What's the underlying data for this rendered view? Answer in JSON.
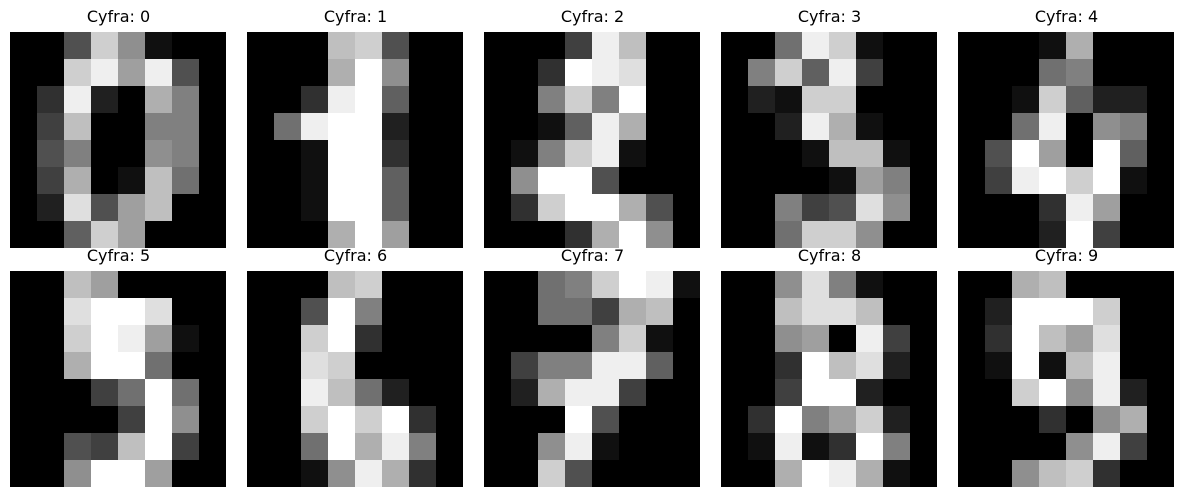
{
  "chart_data": {
    "type": "heatmap",
    "colormap": "gray",
    "value_range": [
      0,
      16
    ],
    "panels": [
      {
        "title": "Cyfra: 0",
        "pixels": [
          [
            0,
            0,
            5,
            13,
            9,
            1,
            0,
            0
          ],
          [
            0,
            0,
            13,
            15,
            10,
            15,
            5,
            0
          ],
          [
            0,
            3,
            15,
            2,
            0,
            11,
            8,
            0
          ],
          [
            0,
            4,
            12,
            0,
            0,
            8,
            8,
            0
          ],
          [
            0,
            5,
            8,
            0,
            0,
            9,
            8,
            0
          ],
          [
            0,
            4,
            11,
            0,
            1,
            12,
            7,
            0
          ],
          [
            0,
            2,
            14,
            5,
            10,
            12,
            0,
            0
          ],
          [
            0,
            0,
            6,
            13,
            10,
            0,
            0,
            0
          ]
        ]
      },
      {
        "title": "Cyfra: 1",
        "pixels": [
          [
            0,
            0,
            0,
            12,
            13,
            5,
            0,
            0
          ],
          [
            0,
            0,
            0,
            11,
            16,
            9,
            0,
            0
          ],
          [
            0,
            0,
            3,
            15,
            16,
            6,
            0,
            0
          ],
          [
            0,
            7,
            15,
            16,
            16,
            2,
            0,
            0
          ],
          [
            0,
            0,
            1,
            16,
            16,
            3,
            0,
            0
          ],
          [
            0,
            0,
            1,
            16,
            16,
            6,
            0,
            0
          ],
          [
            0,
            0,
            1,
            16,
            16,
            6,
            0,
            0
          ],
          [
            0,
            0,
            0,
            11,
            16,
            10,
            0,
            0
          ]
        ]
      },
      {
        "title": "Cyfra: 2",
        "pixels": [
          [
            0,
            0,
            0,
            4,
            15,
            12,
            0,
            0
          ],
          [
            0,
            0,
            3,
            16,
            15,
            14,
            0,
            0
          ],
          [
            0,
            0,
            8,
            13,
            8,
            16,
            0,
            0
          ],
          [
            0,
            0,
            1,
            6,
            15,
            11,
            0,
            0
          ],
          [
            0,
            1,
            8,
            13,
            15,
            1,
            0,
            0
          ],
          [
            0,
            9,
            16,
            16,
            5,
            0,
            0,
            0
          ],
          [
            0,
            3,
            13,
            16,
            16,
            11,
            5,
            0
          ],
          [
            0,
            0,
            0,
            3,
            11,
            16,
            9,
            0
          ]
        ]
      },
      {
        "title": "Cyfra: 3",
        "pixels": [
          [
            0,
            0,
            7,
            15,
            13,
            1,
            0,
            0
          ],
          [
            0,
            8,
            13,
            6,
            15,
            4,
            0,
            0
          ],
          [
            0,
            2,
            1,
            13,
            13,
            0,
            0,
            0
          ],
          [
            0,
            0,
            2,
            15,
            11,
            1,
            0,
            0
          ],
          [
            0,
            0,
            0,
            1,
            12,
            12,
            1,
            0
          ],
          [
            0,
            0,
            0,
            0,
            1,
            10,
            8,
            0
          ],
          [
            0,
            0,
            8,
            4,
            5,
            14,
            9,
            0
          ],
          [
            0,
            0,
            7,
            13,
            13,
            9,
            0,
            0
          ]
        ]
      },
      {
        "title": "Cyfra: 4",
        "pixels": [
          [
            0,
            0,
            0,
            1,
            11,
            0,
            0,
            0
          ],
          [
            0,
            0,
            0,
            7,
            8,
            0,
            0,
            0
          ],
          [
            0,
            0,
            1,
            13,
            6,
            2,
            2,
            0
          ],
          [
            0,
            0,
            7,
            15,
            0,
            9,
            8,
            0
          ],
          [
            0,
            5,
            16,
            10,
            0,
            16,
            6,
            0
          ],
          [
            0,
            4,
            15,
            16,
            13,
            16,
            1,
            0
          ],
          [
            0,
            0,
            0,
            3,
            15,
            10,
            0,
            0
          ],
          [
            0,
            0,
            0,
            2,
            16,
            4,
            0,
            0
          ]
        ]
      },
      {
        "title": "Cyfra: 5",
        "pixels": [
          [
            0,
            0,
            12,
            10,
            0,
            0,
            0,
            0
          ],
          [
            0,
            0,
            14,
            16,
            16,
            14,
            0,
            0
          ],
          [
            0,
            0,
            13,
            16,
            15,
            10,
            1,
            0
          ],
          [
            0,
            0,
            11,
            16,
            16,
            7,
            0,
            0
          ],
          [
            0,
            0,
            0,
            4,
            7,
            16,
            7,
            0
          ],
          [
            0,
            0,
            0,
            0,
            4,
            16,
            9,
            0
          ],
          [
            0,
            0,
            5,
            4,
            12,
            16,
            4,
            0
          ],
          [
            0,
            0,
            9,
            16,
            16,
            10,
            0,
            0
          ]
        ]
      },
      {
        "title": "Cyfra: 6",
        "pixels": [
          [
            0,
            0,
            0,
            12,
            13,
            0,
            0,
            0
          ],
          [
            0,
            0,
            5,
            16,
            8,
            0,
            0,
            0
          ],
          [
            0,
            0,
            13,
            16,
            3,
            0,
            0,
            0
          ],
          [
            0,
            0,
            14,
            13,
            0,
            0,
            0,
            0
          ],
          [
            0,
            0,
            15,
            12,
            7,
            2,
            0,
            0
          ],
          [
            0,
            0,
            13,
            16,
            13,
            16,
            3,
            0
          ],
          [
            0,
            0,
            7,
            16,
            11,
            15,
            8,
            0
          ],
          [
            0,
            0,
            1,
            9,
            15,
            11,
            3,
            0
          ]
        ]
      },
      {
        "title": "Cyfra: 7",
        "pixels": [
          [
            0,
            0,
            7,
            8,
            13,
            16,
            15,
            1
          ],
          [
            0,
            0,
            7,
            7,
            4,
            11,
            12,
            0
          ],
          [
            0,
            0,
            0,
            0,
            8,
            13,
            1,
            0
          ],
          [
            0,
            4,
            8,
            8,
            15,
            15,
            6,
            0
          ],
          [
            0,
            2,
            11,
            15,
            15,
            4,
            0,
            0
          ],
          [
            0,
            0,
            0,
            16,
            5,
            0,
            0,
            0
          ],
          [
            0,
            0,
            9,
            15,
            1,
            0,
            0,
            0
          ],
          [
            0,
            0,
            13,
            5,
            0,
            0,
            0,
            0
          ]
        ]
      },
      {
        "title": "Cyfra: 8",
        "pixels": [
          [
            0,
            0,
            9,
            14,
            8,
            1,
            0,
            0
          ],
          [
            0,
            0,
            12,
            14,
            14,
            12,
            0,
            0
          ],
          [
            0,
            0,
            9,
            10,
            0,
            15,
            4,
            0
          ],
          [
            0,
            0,
            3,
            16,
            12,
            14,
            2,
            0
          ],
          [
            0,
            0,
            4,
            16,
            16,
            2,
            0,
            0
          ],
          [
            0,
            3,
            16,
            8,
            10,
            13,
            2,
            0
          ],
          [
            0,
            1,
            15,
            1,
            3,
            16,
            8,
            0
          ],
          [
            0,
            0,
            11,
            16,
            15,
            11,
            1,
            0
          ]
        ]
      },
      {
        "title": "Cyfra: 9",
        "pixels": [
          [
            0,
            0,
            11,
            12,
            0,
            0,
            0,
            0
          ],
          [
            0,
            2,
            16,
            16,
            16,
            13,
            0,
            0
          ],
          [
            0,
            3,
            16,
            12,
            10,
            14,
            0,
            0
          ],
          [
            0,
            1,
            16,
            1,
            12,
            15,
            0,
            0
          ],
          [
            0,
            0,
            13,
            16,
            9,
            15,
            2,
            0
          ],
          [
            0,
            0,
            0,
            3,
            0,
            9,
            11,
            0
          ],
          [
            0,
            0,
            0,
            0,
            9,
            15,
            4,
            0
          ],
          [
            0,
            0,
            9,
            12,
            13,
            3,
            0,
            0
          ]
        ]
      }
    ]
  }
}
